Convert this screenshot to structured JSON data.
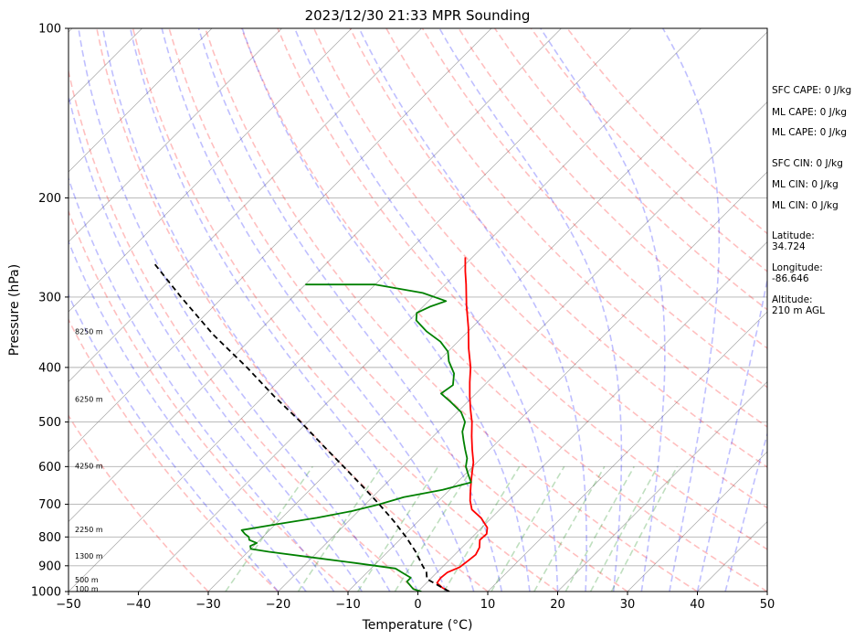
{
  "chart_data": {
    "type": "line",
    "subtype": "skew-t log-p sounding",
    "title": "2023/12/30 21:33 MPR Sounding",
    "xlabel": "Temperature (°C)",
    "ylabel": "Pressure (hPa)",
    "xlim": [
      -50,
      50
    ],
    "ylim": [
      1000,
      100
    ],
    "y_scale": "log",
    "x_ticks": [
      -50,
      -40,
      -30,
      -20,
      -10,
      0,
      10,
      20,
      30,
      40,
      50
    ],
    "x_tick_labels": [
      "−50",
      "−40",
      "−30",
      "−20",
      "−10",
      "0",
      "10",
      "20",
      "30",
      "40",
      "50"
    ],
    "y_ticks": [
      1000,
      900,
      800,
      700,
      600,
      500,
      400,
      300,
      200,
      100
    ],
    "y_tick_labels": [
      "1000",
      "900",
      "800",
      "700",
      "600",
      "500",
      "400",
      "300",
      "200",
      "100"
    ],
    "grid": true,
    "colors": {
      "temperature": "#ff0000",
      "dewpoint": "#008000",
      "parcel": "#000000",
      "dry_adiabats": "#ff0000",
      "moist_adiabats": "#0000ff",
      "mixing_ratio": "#008000",
      "isotherms": "#808080"
    },
    "series": [
      {
        "role": "temperature",
        "points": [
          {
            "p": 1000,
            "t": 4.5
          },
          {
            "p": 985,
            "t": 3.0
          },
          {
            "p": 965,
            "t": 1.5
          },
          {
            "p": 945,
            "t": 1.3
          },
          {
            "p": 925,
            "t": 1.5
          },
          {
            "p": 905,
            "t": 2.5
          },
          {
            "p": 880,
            "t": 2.8
          },
          {
            "p": 860,
            "t": 3.0
          },
          {
            "p": 835,
            "t": 2.5
          },
          {
            "p": 810,
            "t": 1.5
          },
          {
            "p": 790,
            "t": 1.6
          },
          {
            "p": 770,
            "t": 0.8
          },
          {
            "p": 740,
            "t": -1.5
          },
          {
            "p": 715,
            "t": -4.0
          },
          {
            "p": 690,
            "t": -5.5
          },
          {
            "p": 670,
            "t": -6.5
          },
          {
            "p": 650,
            "t": -7.5
          },
          {
            "p": 630,
            "t": -8.5
          },
          {
            "p": 610,
            "t": -9.5
          },
          {
            "p": 590,
            "t": -10.5
          },
          {
            "p": 560,
            "t": -12.5
          },
          {
            "p": 530,
            "t": -14.5
          },
          {
            "p": 500,
            "t": -16.5
          },
          {
            "p": 475,
            "t": -18.5
          },
          {
            "p": 450,
            "t": -20.5
          },
          {
            "p": 425,
            "t": -22.5
          },
          {
            "p": 400,
            "t": -24.5
          },
          {
            "p": 370,
            "t": -27.5
          },
          {
            "p": 340,
            "t": -30.5
          },
          {
            "p": 310,
            "t": -34.0
          },
          {
            "p": 285,
            "t": -37.0
          },
          {
            "p": 270,
            "t": -39.0
          },
          {
            "p": 255,
            "t": -41.0
          }
        ]
      },
      {
        "role": "dewpoint",
        "points": [
          {
            "p": 1000,
            "t": 0.5
          },
          {
            "p": 990,
            "t": -1.0
          },
          {
            "p": 975,
            "t": -2.0
          },
          {
            "p": 960,
            "t": -3.0
          },
          {
            "p": 945,
            "t": -3.0
          },
          {
            "p": 930,
            "t": -4.5
          },
          {
            "p": 910,
            "t": -6.5
          },
          {
            "p": 890,
            "t": -13.0
          },
          {
            "p": 870,
            "t": -20.0
          },
          {
            "p": 850,
            "t": -27.0
          },
          {
            "p": 840,
            "t": -30.0
          },
          {
            "p": 830,
            "t": -30.5
          },
          {
            "p": 820,
            "t": -30.0
          },
          {
            "p": 810,
            "t": -31.5
          },
          {
            "p": 800,
            "t": -32.0
          },
          {
            "p": 790,
            "t": -33.0
          },
          {
            "p": 778,
            "t": -34.0
          },
          {
            "p": 760,
            "t": -30.0
          },
          {
            "p": 740,
            "t": -25.0
          },
          {
            "p": 720,
            "t": -21.0
          },
          {
            "p": 700,
            "t": -18.0
          },
          {
            "p": 680,
            "t": -15.5
          },
          {
            "p": 660,
            "t": -11.0
          },
          {
            "p": 640,
            "t": -8.0
          },
          {
            "p": 620,
            "t": -9.5
          },
          {
            "p": 600,
            "t": -11.0
          },
          {
            "p": 580,
            "t": -12.0
          },
          {
            "p": 560,
            "t": -13.5
          },
          {
            "p": 540,
            "t": -15.0
          },
          {
            "p": 520,
            "t": -16.5
          },
          {
            "p": 500,
            "t": -17.5
          },
          {
            "p": 480,
            "t": -19.5
          },
          {
            "p": 460,
            "t": -22.5
          },
          {
            "p": 445,
            "t": -25.0
          },
          {
            "p": 430,
            "t": -24.5
          },
          {
            "p": 410,
            "t": -26.0
          },
          {
            "p": 390,
            "t": -28.5
          },
          {
            "p": 375,
            "t": -30.0
          },
          {
            "p": 360,
            "t": -32.5
          },
          {
            "p": 345,
            "t": -36.0
          },
          {
            "p": 330,
            "t": -39.0
          },
          {
            "p": 320,
            "t": -40.0
          },
          {
            "p": 312,
            "t": -39.0
          },
          {
            "p": 305,
            "t": -37.5
          },
          {
            "p": 295,
            "t": -42.0
          },
          {
            "p": 285,
            "t": -50.0
          },
          {
            "p": 285,
            "t": -60.0
          }
        ]
      },
      {
        "role": "parcel",
        "points": [
          {
            "p": 1000,
            "t": 4.5
          },
          {
            "p": 975,
            "t": 2.0
          },
          {
            "p": 950,
            "t": -0.5
          },
          {
            "p": 925,
            "t": -1.5
          },
          {
            "p": 900,
            "t": -3.0
          },
          {
            "p": 850,
            "t": -6.0
          },
          {
            "p": 800,
            "t": -9.5
          },
          {
            "p": 750,
            "t": -13.5
          },
          {
            "p": 700,
            "t": -18.0
          },
          {
            "p": 650,
            "t": -23.0
          },
          {
            "p": 600,
            "t": -28.5
          },
          {
            "p": 550,
            "t": -34.5
          },
          {
            "p": 500,
            "t": -41.0
          },
          {
            "p": 450,
            "t": -48.5
          },
          {
            "p": 400,
            "t": -56.5
          },
          {
            "p": 350,
            "t": -66.0
          },
          {
            "p": 300,
            "t": -76.0
          },
          {
            "p": 260,
            "t": -85.0
          }
        ]
      }
    ],
    "height_labels": [
      {
        "p": 988,
        "label": "100 m"
      },
      {
        "p": 952,
        "label": "500 m"
      },
      {
        "p": 865,
        "label": "1300 m"
      },
      {
        "p": 775,
        "label": "2250 m"
      },
      {
        "p": 598,
        "label": "4250 m"
      },
      {
        "p": 455,
        "label": "6250 m"
      },
      {
        "p": 345,
        "label": "8250 m"
      }
    ]
  },
  "stats": [
    {
      "text": "SFC CAPE: 0 J/kg"
    },
    {
      "text": "ML CAPE: 0 J/kg"
    },
    {
      "text": "ML CAPE: 0 J/kg"
    },
    {
      "text": "SFC CIN: 0 J/kg"
    },
    {
      "text": "ML CIN: 0 J/kg"
    },
    {
      "text": "ML CIN: 0 J/kg"
    },
    {
      "text": "Latitude:"
    },
    {
      "text": "34.724"
    },
    {
      "text": "Longitude:"
    },
    {
      "text": "-86.646"
    },
    {
      "text": "Altitude:"
    },
    {
      "text": "210 m AGL"
    }
  ]
}
